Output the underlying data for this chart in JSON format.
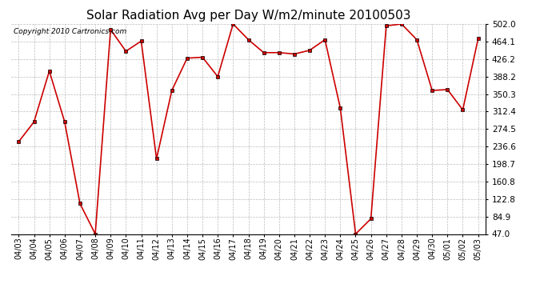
{
  "title": "Solar Radiation Avg per Day W/m2/minute 20100503",
  "copyright": "Copyright 2010 Cartronics.com",
  "dates": [
    "04/03",
    "04/04",
    "04/05",
    "04/06",
    "04/07",
    "04/08",
    "04/09",
    "04/10",
    "04/11",
    "04/12",
    "04/13",
    "04/14",
    "04/15",
    "04/16",
    "04/17",
    "04/18",
    "04/19",
    "04/20",
    "04/21",
    "04/22",
    "04/23",
    "04/24",
    "04/25",
    "04/26",
    "04/27",
    "04/28",
    "04/29",
    "04/30",
    "05/01",
    "05/02",
    "05/03"
  ],
  "values": [
    247.0,
    290.0,
    400.0,
    290.0,
    113.0,
    47.0,
    490.0,
    443.0,
    465.0,
    210.0,
    358.0,
    428.0,
    430.0,
    388.0,
    502.0,
    468.0,
    440.0,
    440.0,
    437.0,
    445.0,
    468.0,
    320.0,
    47.0,
    80.0,
    498.0,
    502.0,
    468.0,
    358.0,
    360.0,
    316.0,
    470.0
  ],
  "line_color": "#cc0000",
  "marker": "s",
  "marker_size": 2.5,
  "bg_color": "#ffffff",
  "grid_color": "#bbbbbb",
  "ylim": [
    47.0,
    502.0
  ],
  "yticks": [
    47.0,
    84.9,
    122.8,
    160.8,
    198.7,
    236.6,
    274.5,
    312.4,
    350.3,
    388.2,
    426.2,
    464.1,
    502.0
  ],
  "title_fontsize": 11,
  "copyright_fontsize": 6.5,
  "tick_fontsize": 7,
  "ytick_fontsize": 7.5
}
